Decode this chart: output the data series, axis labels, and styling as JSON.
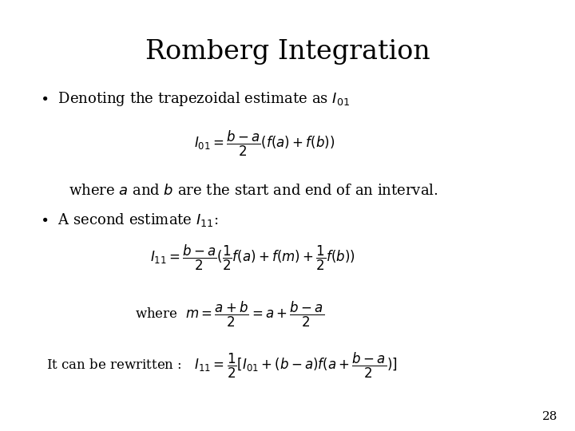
{
  "title": "Romberg Integration",
  "background_color": "#ffffff",
  "text_color": "#000000",
  "page_number": "28",
  "title_fontsize": 24,
  "body_fontsize": 13,
  "formula_fontsize": 12
}
